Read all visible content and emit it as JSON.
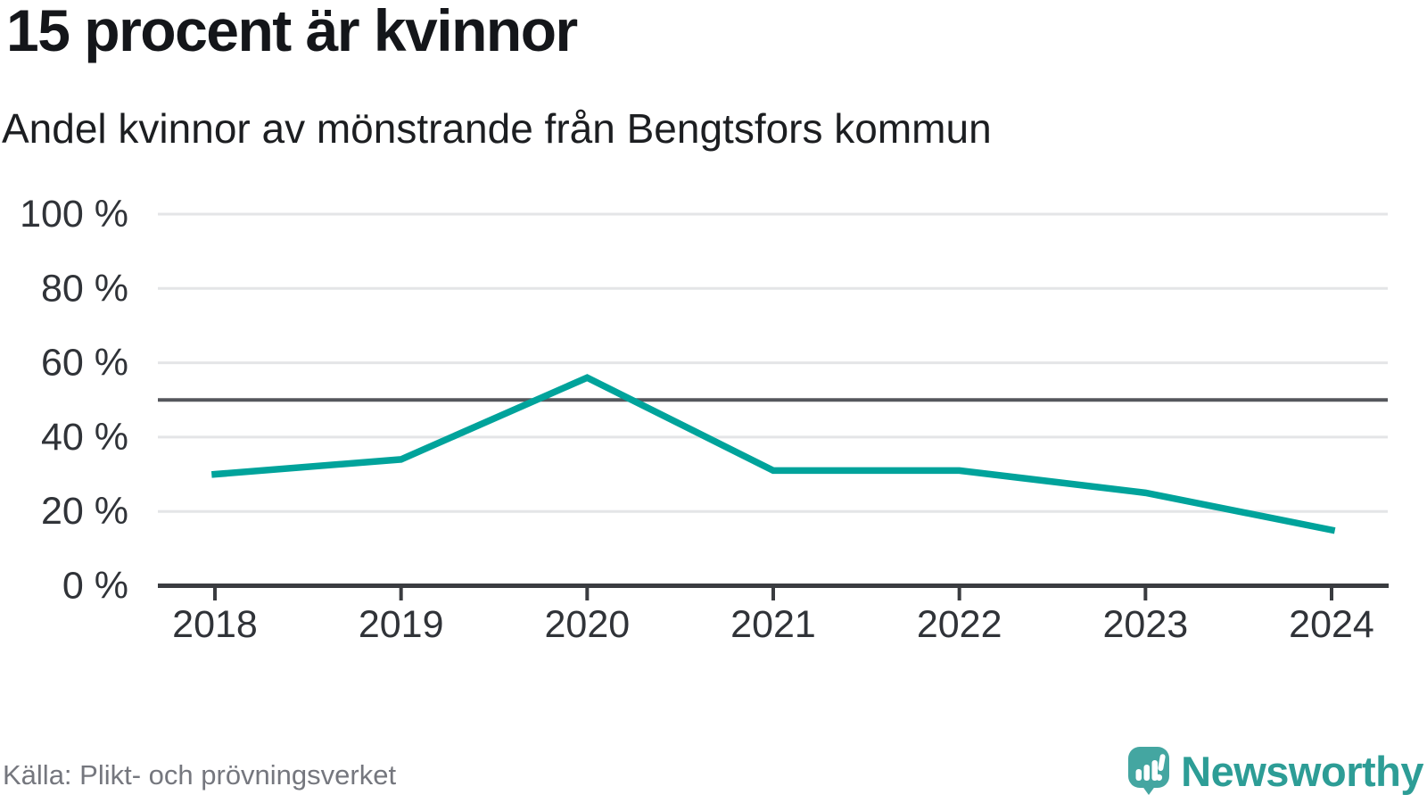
{
  "chart_data": {
    "type": "line",
    "title": "15 procent är kvinnor",
    "subtitle": "Andel kvinnor av mönstrande från Bengtsfors kommun",
    "categories": [
      "2018",
      "2019",
      "2020",
      "2021",
      "2022",
      "2023",
      "2024"
    ],
    "series": [
      {
        "name": "Andel kvinnor av mönstrande",
        "values": [
          30,
          34,
          56,
          31,
          31,
          25,
          15
        ]
      }
    ],
    "unit": "%",
    "ylim": [
      0,
      100
    ],
    "yticks": [
      0,
      20,
      40,
      60,
      80,
      100
    ],
    "ytick_suffix": " %",
    "reference_line": 50,
    "grid": true,
    "legend_position": "none",
    "line_color": "#00a39b",
    "reference_line_color": "#55575c",
    "grid_color": "#e4e5e7",
    "axis_color": "#3a3c40",
    "tick_label_color": "#303338"
  },
  "footer": {
    "source": "Källa: Plikt- och prövningsverket",
    "brand": "Newsworthy",
    "brand_color": "#2d9d96",
    "logo_icon_color": "#44a6a1"
  }
}
